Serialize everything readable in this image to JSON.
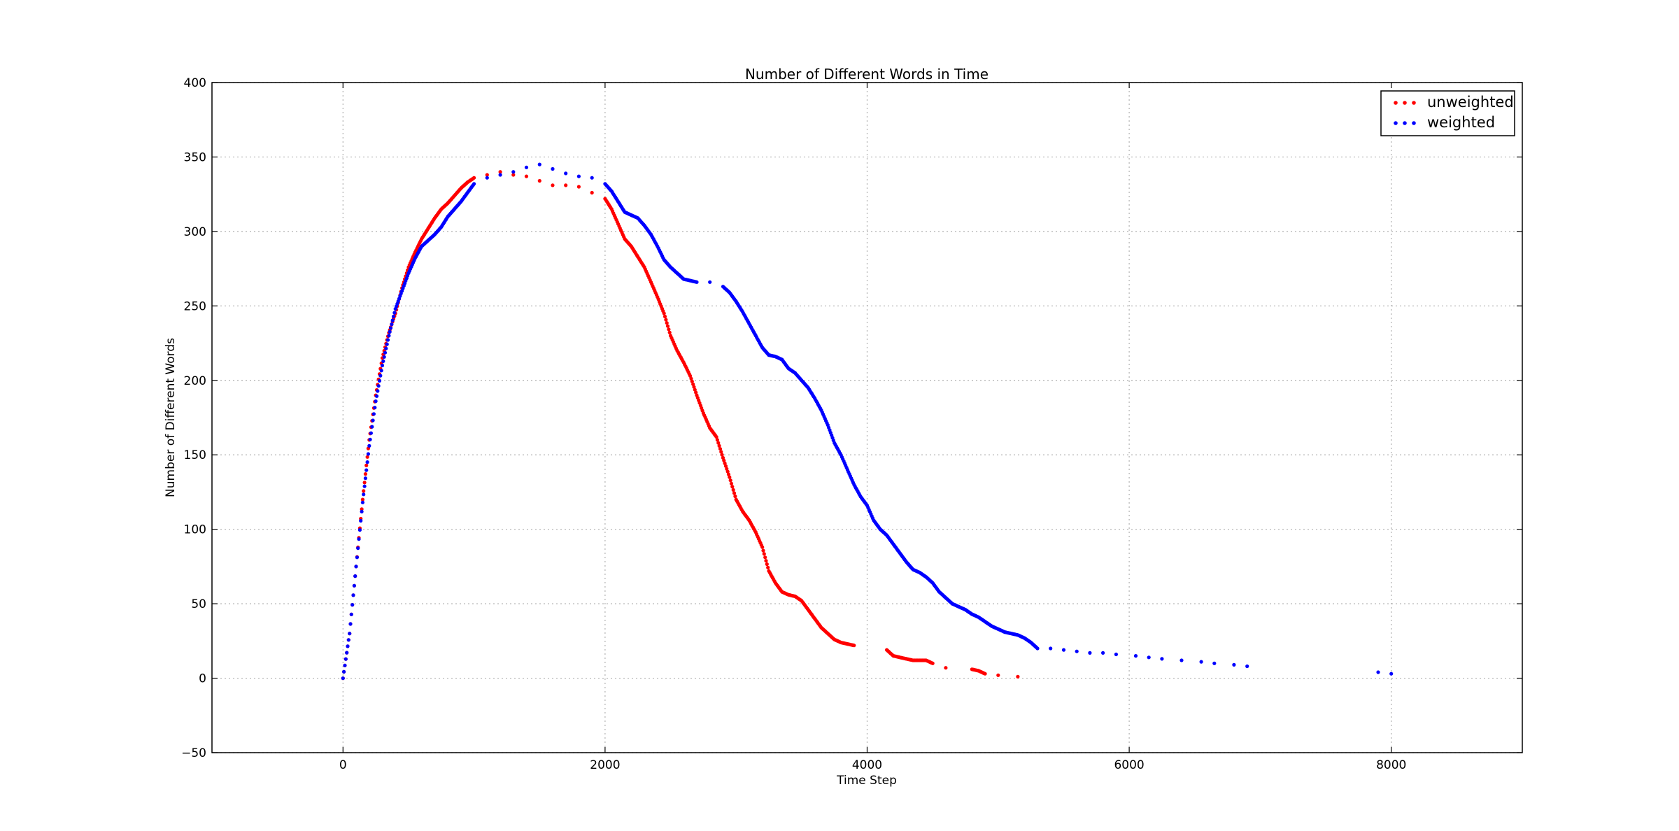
{
  "chart_data": {
    "type": "scatter",
    "title": "Number of Different Words in Time",
    "xlabel": "Time Step",
    "ylabel": "Number of Different Words",
    "xlim": [
      -1000,
      9000
    ],
    "ylim": [
      -50,
      400
    ],
    "xticks": [
      0,
      2000,
      4000,
      6000,
      8000
    ],
    "yticks": [
      -50,
      0,
      50,
      100,
      150,
      200,
      250,
      300,
      350,
      400
    ],
    "grid": true,
    "legend_position": "top-right",
    "series": [
      {
        "name": "unweighted",
        "color": "#ff0000",
        "points": [
          [
            0,
            0
          ],
          [
            50,
            30
          ],
          [
            100,
            75
          ],
          [
            150,
            120
          ],
          [
            200,
            160
          ],
          [
            250,
            190
          ],
          [
            300,
            215
          ],
          [
            350,
            232
          ],
          [
            400,
            245
          ],
          [
            450,
            262
          ],
          [
            500,
            276
          ],
          [
            550,
            286
          ],
          [
            600,
            295
          ],
          [
            650,
            302
          ],
          [
            700,
            309
          ],
          [
            750,
            315
          ],
          [
            800,
            319
          ],
          [
            850,
            324
          ],
          [
            900,
            329
          ],
          [
            950,
            333
          ],
          [
            1000,
            336
          ],
          [
            1100,
            338
          ],
          [
            1200,
            340
          ],
          [
            1300,
            338
          ],
          [
            1400,
            337
          ],
          [
            1500,
            334
          ],
          [
            1600,
            331
          ],
          [
            1700,
            331
          ],
          [
            1800,
            330
          ],
          [
            1900,
            326
          ],
          [
            2000,
            322
          ],
          [
            2050,
            315
          ],
          [
            2100,
            305
          ],
          [
            2150,
            295
          ],
          [
            2200,
            290
          ],
          [
            2250,
            283
          ],
          [
            2300,
            276
          ],
          [
            2350,
            266
          ],
          [
            2400,
            256
          ],
          [
            2450,
            245
          ],
          [
            2500,
            230
          ],
          [
            2550,
            220
          ],
          [
            2600,
            212
          ],
          [
            2650,
            203
          ],
          [
            2700,
            190
          ],
          [
            2750,
            178
          ],
          [
            2800,
            168
          ],
          [
            2850,
            162
          ],
          [
            2900,
            148
          ],
          [
            2950,
            135
          ],
          [
            3000,
            120
          ],
          [
            3050,
            112
          ],
          [
            3100,
            106
          ],
          [
            3150,
            98
          ],
          [
            3200,
            88
          ],
          [
            3250,
            72
          ],
          [
            3300,
            64
          ],
          [
            3350,
            58
          ],
          [
            3400,
            56
          ],
          [
            3450,
            55
          ],
          [
            3500,
            52
          ],
          [
            3550,
            46
          ],
          [
            3600,
            40
          ],
          [
            3650,
            34
          ],
          [
            3700,
            30
          ],
          [
            3750,
            26
          ],
          [
            3800,
            24
          ],
          [
            3850,
            23
          ],
          [
            3900,
            22
          ],
          [
            4150,
            19
          ],
          [
            4200,
            15
          ],
          [
            4250,
            14
          ],
          [
            4300,
            13
          ],
          [
            4350,
            12
          ],
          [
            4400,
            12
          ],
          [
            4450,
            12
          ],
          [
            4500,
            10
          ],
          [
            4600,
            7
          ],
          [
            4800,
            6
          ],
          [
            4850,
            5
          ],
          [
            4900,
            3
          ],
          [
            5000,
            2
          ],
          [
            5150,
            1
          ]
        ]
      },
      {
        "name": "weighted",
        "color": "#0000ff",
        "points": [
          [
            0,
            0
          ],
          [
            50,
            30
          ],
          [
            100,
            75
          ],
          [
            150,
            118
          ],
          [
            200,
            156
          ],
          [
            250,
            186
          ],
          [
            300,
            210
          ],
          [
            350,
            230
          ],
          [
            400,
            248
          ],
          [
            450,
            260
          ],
          [
            500,
            272
          ],
          [
            550,
            282
          ],
          [
            600,
            290
          ],
          [
            650,
            294
          ],
          [
            700,
            298
          ],
          [
            750,
            303
          ],
          [
            800,
            310
          ],
          [
            850,
            315
          ],
          [
            900,
            320
          ],
          [
            950,
            326
          ],
          [
            1000,
            332
          ],
          [
            1100,
            336
          ],
          [
            1200,
            338
          ],
          [
            1300,
            340
          ],
          [
            1400,
            343
          ],
          [
            1500,
            345
          ],
          [
            1600,
            342
          ],
          [
            1700,
            339
          ],
          [
            1800,
            337
          ],
          [
            1900,
            336
          ],
          [
            2000,
            332
          ],
          [
            2050,
            327
          ],
          [
            2100,
            320
          ],
          [
            2150,
            313
          ],
          [
            2200,
            311
          ],
          [
            2250,
            309
          ],
          [
            2300,
            304
          ],
          [
            2350,
            298
          ],
          [
            2400,
            290
          ],
          [
            2450,
            281
          ],
          [
            2500,
            276
          ],
          [
            2550,
            272
          ],
          [
            2600,
            268
          ],
          [
            2650,
            267
          ],
          [
            2700,
            266
          ],
          [
            2800,
            266
          ],
          [
            2900,
            263
          ],
          [
            2950,
            259
          ],
          [
            3000,
            253
          ],
          [
            3050,
            246
          ],
          [
            3100,
            238
          ],
          [
            3150,
            230
          ],
          [
            3200,
            222
          ],
          [
            3250,
            217
          ],
          [
            3300,
            216
          ],
          [
            3350,
            214
          ],
          [
            3400,
            208
          ],
          [
            3450,
            205
          ],
          [
            3500,
            200
          ],
          [
            3550,
            195
          ],
          [
            3600,
            188
          ],
          [
            3650,
            180
          ],
          [
            3700,
            170
          ],
          [
            3750,
            158
          ],
          [
            3800,
            150
          ],
          [
            3850,
            140
          ],
          [
            3900,
            130
          ],
          [
            3950,
            122
          ],
          [
            4000,
            116
          ],
          [
            4050,
            106
          ],
          [
            4100,
            100
          ],
          [
            4150,
            96
          ],
          [
            4200,
            90
          ],
          [
            4250,
            84
          ],
          [
            4300,
            78
          ],
          [
            4350,
            73
          ],
          [
            4400,
            71
          ],
          [
            4450,
            68
          ],
          [
            4500,
            64
          ],
          [
            4550,
            58
          ],
          [
            4600,
            54
          ],
          [
            4650,
            50
          ],
          [
            4700,
            48
          ],
          [
            4750,
            46
          ],
          [
            4800,
            43
          ],
          [
            4850,
            41
          ],
          [
            4900,
            38
          ],
          [
            4950,
            35
          ],
          [
            5000,
            33
          ],
          [
            5050,
            31
          ],
          [
            5100,
            30
          ],
          [
            5150,
            29
          ],
          [
            5200,
            27
          ],
          [
            5250,
            24
          ],
          [
            5300,
            20
          ],
          [
            5400,
            20
          ],
          [
            5500,
            19
          ],
          [
            5600,
            18
          ],
          [
            5700,
            17
          ],
          [
            5800,
            17
          ],
          [
            5900,
            16
          ],
          [
            6050,
            15
          ],
          [
            6150,
            14
          ],
          [
            6250,
            13
          ],
          [
            6400,
            12
          ],
          [
            6550,
            11
          ],
          [
            6650,
            10
          ],
          [
            6800,
            9
          ],
          [
            6900,
            8
          ],
          [
            7900,
            4
          ],
          [
            8000,
            3
          ]
        ]
      }
    ]
  }
}
